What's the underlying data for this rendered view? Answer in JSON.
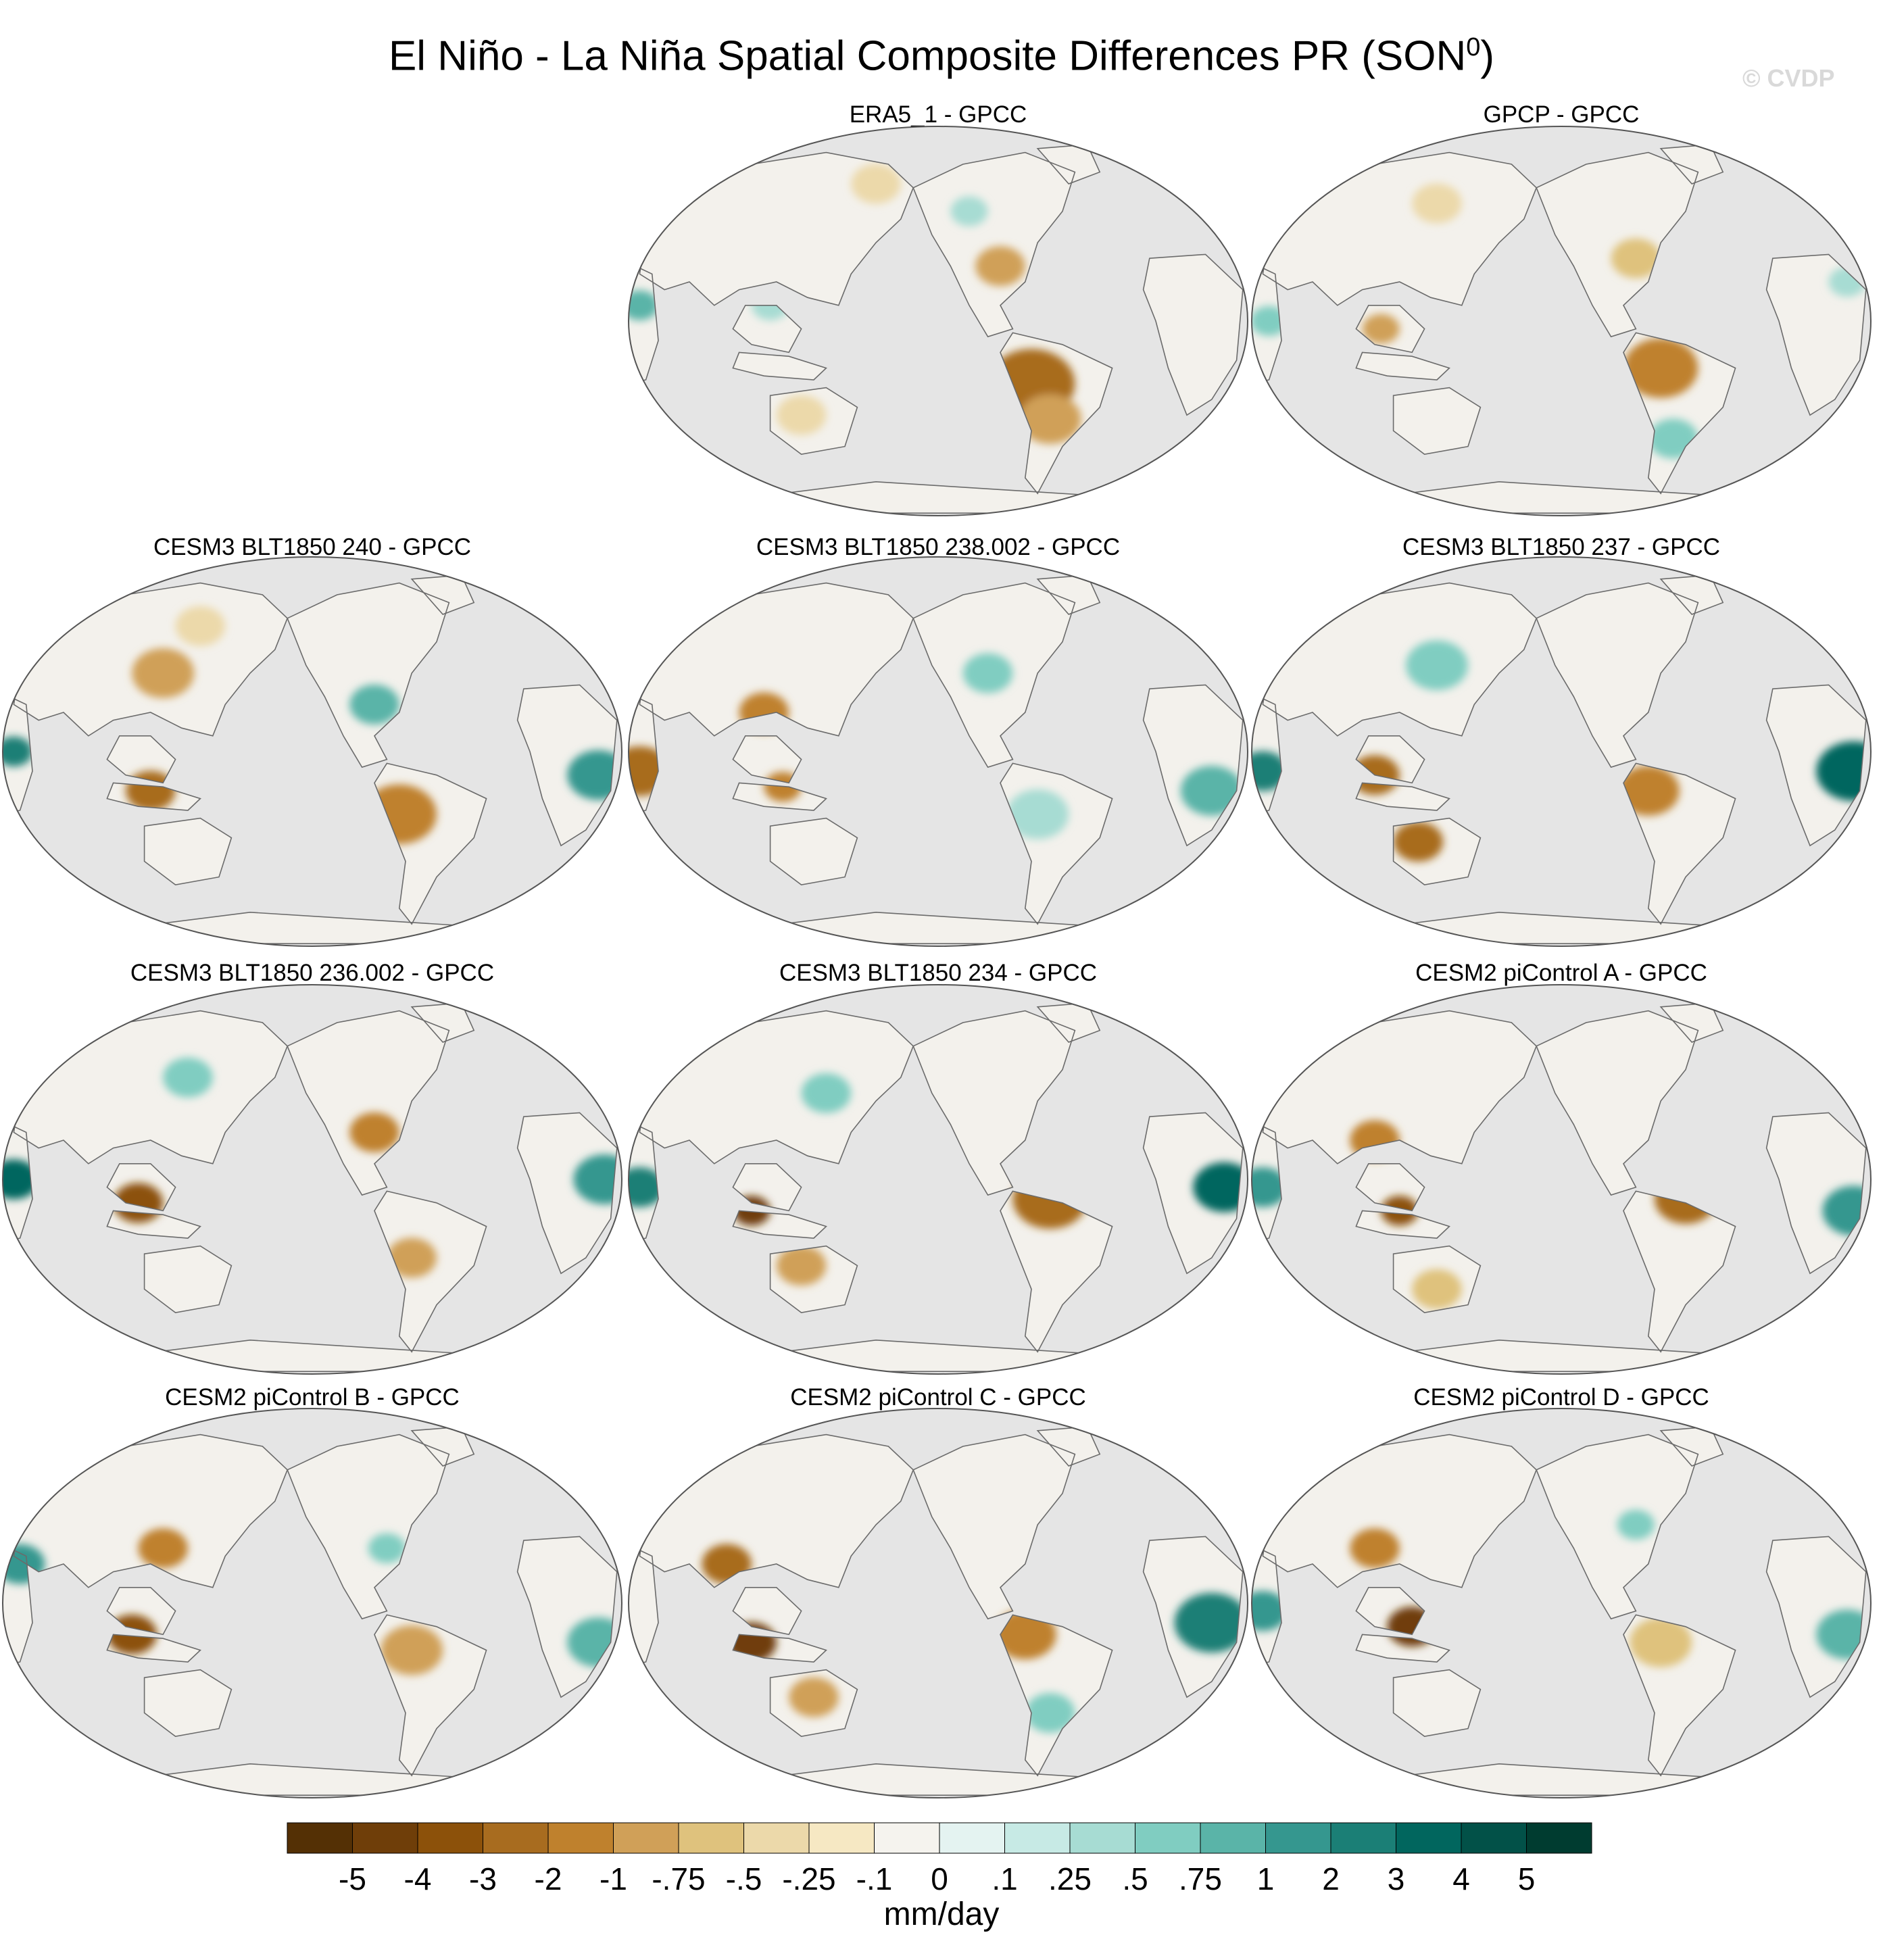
{
  "title": "El Niño - La Niña Spatial Composite Differences PR (SON",
  "title_sup": "0",
  "title_end": ")",
  "watermark": "© CVDP",
  "panels": [
    {
      "id": "era5",
      "title": "ERA5_1 - GPCC",
      "pattern": "obs1"
    },
    {
      "id": "gpcp",
      "title": "GPCP - GPCC",
      "pattern": "obs2"
    },
    {
      "id": "cesm3-240",
      "title": "CESM3 BLT1850 240 - GPCC",
      "pattern": "m1"
    },
    {
      "id": "cesm3-238",
      "title": "CESM3 BLT1850 238.002 - GPCC",
      "pattern": "m2"
    },
    {
      "id": "cesm3-237",
      "title": "CESM3 BLT1850 237 - GPCC",
      "pattern": "m3"
    },
    {
      "id": "cesm3-236",
      "title": "CESM3 BLT1850 236.002 - GPCC",
      "pattern": "m4"
    },
    {
      "id": "cesm3-234",
      "title": "CESM3 BLT1850 234 - GPCC",
      "pattern": "m5"
    },
    {
      "id": "cesm2-a",
      "title": "CESM2 piControl A - GPCC",
      "pattern": "m6"
    },
    {
      "id": "cesm2-b",
      "title": "CESM2 piControl B - GPCC",
      "pattern": "m7"
    },
    {
      "id": "cesm2-c",
      "title": "CESM2 piControl C - GPCC",
      "pattern": "m8"
    },
    {
      "id": "cesm2-d",
      "title": "CESM2 piControl D - GPCC",
      "pattern": "m9"
    }
  ],
  "colorbar": {
    "labels": [
      "-5",
      "-4",
      "-3",
      "-2",
      "-1",
      "-.75",
      "-.5",
      "-.25",
      "-.1",
      "0",
      ".1",
      ".25",
      ".5",
      ".75",
      "1",
      "2",
      "3",
      "4",
      "5"
    ],
    "colors": [
      "#543005",
      "#6f3e09",
      "#8c510a",
      "#a86c1f",
      "#bf812d",
      "#d0a058",
      "#dfc27d",
      "#ecd9aa",
      "#f6e8c3",
      "#f5f3ee",
      "#e4f3f1",
      "#c7eae5",
      "#a7dcd3",
      "#80cdc1",
      "#5ab4a8",
      "#35978f",
      "#1b7f76",
      "#01665e",
      "#025148",
      "#003c30"
    ],
    "units": "mm/day"
  },
  "map_colors": {
    "ocean": "#e5e5e5",
    "coast": "#6b6b6b",
    "land_neutral": "#f3f1ec"
  }
}
